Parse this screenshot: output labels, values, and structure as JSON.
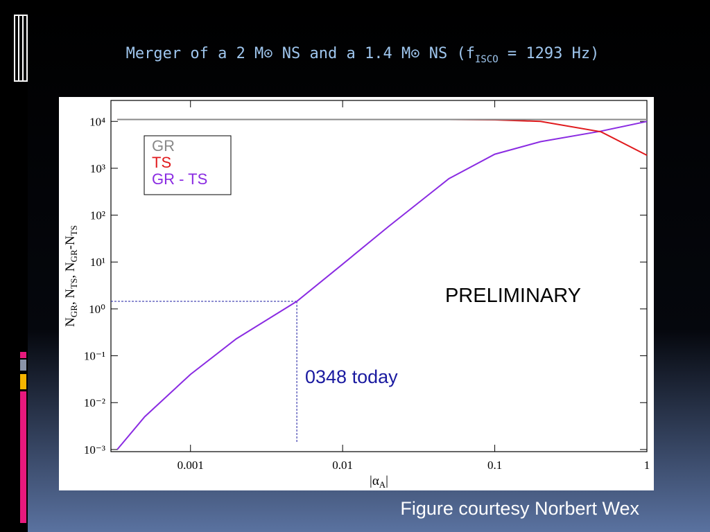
{
  "slide": {
    "title_parts": [
      "Merger of a 2 M⊙ NS and a 1.4 M⊙ NS (f",
      "ISCO",
      " = 1293 Hz)"
    ],
    "caption": "Figure courtesy Norbert Wex"
  },
  "chart_data": {
    "type": "line",
    "x_label_parts": [
      "|α",
      "A",
      "|"
    ],
    "y_label_parts": [
      "N",
      "GR",
      ", N",
      "TS",
      ", N",
      "GR",
      "-N",
      "TS"
    ],
    "x": [
      0.00033,
      0.0005,
      0.001,
      0.002,
      0.005,
      0.01,
      0.02,
      0.05,
      0.1,
      0.2,
      0.5,
      1
    ],
    "series": [
      {
        "name": "GR",
        "color": "#888888",
        "values": [
          11000,
          11000,
          11000,
          11000,
          11000,
          11000,
          11000,
          11000,
          11000,
          11000,
          11000,
          11000
        ]
      },
      {
        "name": "TS",
        "color": "#e0191c",
        "values": [
          11000,
          11000,
          11000,
          11000,
          11000,
          11000,
          11000,
          11000,
          10800,
          10000,
          6000,
          1900
        ]
      },
      {
        "name": "GR - TS",
        "color": "#8a2be2",
        "values": [
          0.001,
          0.005,
          0.04,
          0.23,
          1.45,
          9,
          57,
          600,
          2000,
          3700,
          6200,
          10000
        ]
      }
    ],
    "xlim": [
      0.0003,
      1
    ],
    "ylim": [
      0.0009,
      28000
    ],
    "log_x": true,
    "log_y": true,
    "xticks": [
      0.001,
      0.01,
      0.1,
      1
    ],
    "yticks": [
      {
        "value": 0.001,
        "label": "10⁻³"
      },
      {
        "value": 0.01,
        "label": "10⁻²"
      },
      {
        "value": 0.1,
        "label": "10⁻¹"
      },
      {
        "value": 1,
        "label": "10⁰"
      },
      {
        "value": 10,
        "label": "10¹"
      },
      {
        "value": 100,
        "label": "10²"
      },
      {
        "value": 1000,
        "label": "10³"
      },
      {
        "value": 10000,
        "label": "10⁴"
      }
    ],
    "legend": "upper left",
    "marker": {
      "x": 0.005,
      "y": 1.45,
      "color": "#1a1aa0"
    },
    "annotations": [
      "PRELIMINARY",
      "0348 today"
    ]
  }
}
